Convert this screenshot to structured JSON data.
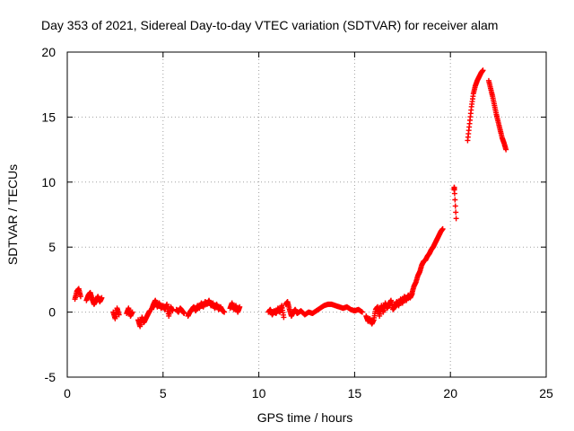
{
  "chart_data": {
    "type": "scatter",
    "title": "Day 353 of 2021, Sidereal Day-to-day VTEC variation (SDTVAR) for receiver alam",
    "xlabel": "GPS time / hours",
    "ylabel": "SDTVAR / TECUs",
    "xlim": [
      0,
      25
    ],
    "ylim": [
      -5,
      20
    ],
    "xticks": [
      0,
      5,
      10,
      15,
      20,
      25
    ],
    "yticks": [
      -5,
      0,
      5,
      10,
      15,
      20
    ],
    "grid": true,
    "marker": "+",
    "color": "#ff0000",
    "segments": [
      {
        "x": [
          0.4,
          0.5,
          0.6,
          0.7
        ],
        "y": [
          1.0,
          1.6,
          1.8,
          1.2
        ]
      },
      {
        "x": [
          1.0,
          1.1,
          1.2,
          1.3,
          1.4,
          1.5,
          1.6,
          1.7,
          1.8
        ],
        "y": [
          0.9,
          1.3,
          1.5,
          1.0,
          0.6,
          0.9,
          1.2,
          0.8,
          1.1
        ]
      },
      {
        "x": [
          2.4,
          2.5,
          2.6,
          2.7
        ],
        "y": [
          0.0,
          -0.5,
          0.3,
          -0.2
        ]
      },
      {
        "x": [
          3.1,
          3.2,
          3.3,
          3.4
        ],
        "y": [
          -0.1,
          0.3,
          -0.3,
          0.0
        ]
      },
      {
        "x": [
          3.7,
          3.8,
          3.9,
          4.0,
          4.1,
          4.2,
          4.3
        ],
        "y": [
          -0.6,
          -1.1,
          -0.4,
          -0.8,
          -0.5,
          -0.2,
          0.1
        ]
      },
      {
        "x": [
          4.4,
          4.5,
          4.6,
          4.7,
          4.8,
          4.9,
          5.0,
          5.1,
          5.2,
          5.3,
          5.4,
          5.5
        ],
        "y": [
          0.2,
          0.6,
          0.9,
          0.4,
          0.7,
          0.3,
          0.5,
          0.2,
          0.6,
          -0.3,
          0.4,
          0.1
        ]
      },
      {
        "x": [
          5.7,
          5.8,
          5.9,
          6.0,
          6.1
        ],
        "y": [
          0.2,
          0.0,
          0.3,
          0.1,
          -0.1
        ]
      },
      {
        "x": [
          6.3,
          6.4,
          6.5,
          6.6,
          6.7,
          6.8,
          6.9,
          7.0,
          7.1,
          7.2,
          7.3,
          7.4,
          7.5,
          7.6,
          7.7,
          7.8,
          7.9,
          8.0,
          8.1,
          8.2
        ],
        "y": [
          -0.3,
          0.0,
          0.2,
          0.4,
          0.1,
          0.5,
          0.3,
          0.7,
          0.4,
          0.8,
          0.6,
          0.9,
          0.5,
          0.7,
          0.3,
          0.6,
          0.2,
          0.4,
          0.1,
          0.0
        ]
      },
      {
        "x": [
          8.5,
          8.6,
          8.7,
          8.8,
          8.9,
          9.0
        ],
        "y": [
          0.3,
          0.7,
          0.2,
          0.5,
          0.0,
          0.4
        ]
      },
      {
        "x": [
          10.5,
          10.6,
          10.7,
          10.8,
          10.9,
          11.0,
          11.1,
          11.2,
          11.3
        ],
        "y": [
          0.0,
          0.2,
          -0.2,
          0.1,
          -0.1,
          0.3,
          0.0,
          0.5,
          -0.4
        ]
      },
      {
        "x": [
          11.4,
          11.5,
          11.6,
          11.7,
          11.8,
          11.9,
          12.0,
          12.2,
          12.4,
          12.6,
          12.8,
          13.0,
          13.2,
          13.4,
          13.6,
          13.8,
          14.0,
          14.2,
          14.4,
          14.6,
          14.8,
          15.0,
          15.2,
          15.4
        ],
        "y": [
          0.6,
          0.8,
          0.2,
          -0.3,
          0.0,
          0.2,
          -0.1,
          0.1,
          -0.2,
          0.0,
          -0.1,
          0.1,
          0.3,
          0.5,
          0.6,
          0.6,
          0.5,
          0.4,
          0.3,
          0.4,
          0.2,
          0.1,
          0.2,
          0.0
        ]
      },
      {
        "x": [
          15.6,
          15.7,
          15.8,
          15.9,
          16.0,
          16.1,
          16.2,
          16.3,
          16.4,
          16.5,
          16.6,
          16.7,
          16.8,
          16.9,
          17.0,
          17.1,
          17.2,
          17.3,
          17.4,
          17.5,
          17.6,
          17.7,
          17.8,
          17.9,
          18.0
        ],
        "y": [
          -0.3,
          -0.7,
          -0.5,
          -0.9,
          -0.6,
          0.2,
          0.4,
          -0.3,
          0.5,
          0.0,
          0.7,
          0.3,
          0.6,
          0.9,
          0.2,
          0.4,
          0.8,
          0.5,
          1.0,
          0.7,
          1.2,
          0.9,
          1.3,
          1.1,
          1.4
        ]
      },
      {
        "x": [
          18.0,
          18.1,
          18.2,
          18.3,
          18.4,
          18.5,
          18.6,
          18.7,
          18.8,
          18.9,
          19.0,
          19.1,
          19.2,
          19.3,
          19.4,
          19.5,
          19.6
        ],
        "y": [
          1.5,
          2.0,
          2.3,
          2.8,
          3.1,
          3.6,
          3.9,
          4.0,
          4.3,
          4.5,
          4.8,
          5.0,
          5.3,
          5.6,
          5.9,
          6.2,
          6.4
        ]
      },
      {
        "x": [
          20.2,
          20.2,
          20.3
        ],
        "y": [
          9.4,
          9.6,
          7.2
        ]
      },
      {
        "x": [
          20.9,
          21.0,
          21.1,
          21.2,
          21.3,
          21.4,
          21.5,
          21.6,
          21.7
        ],
        "y": [
          13.2,
          14.5,
          15.8,
          16.8,
          17.4,
          17.8,
          18.1,
          18.4,
          18.6
        ]
      },
      {
        "x": [
          22.0,
          22.1,
          22.2,
          22.3,
          22.4,
          22.5,
          22.6,
          22.7,
          22.8,
          22.9
        ],
        "y": [
          17.8,
          17.2,
          16.6,
          15.9,
          15.2,
          14.6,
          14.0,
          13.4,
          13.0,
          12.5
        ]
      }
    ]
  }
}
